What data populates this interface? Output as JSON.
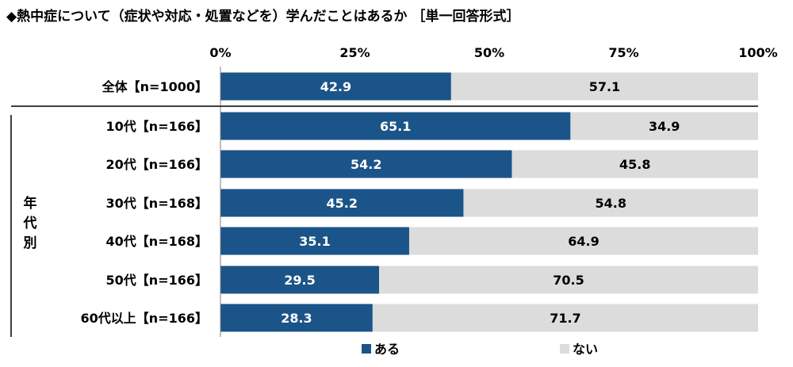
{
  "chart_data": {
    "type": "bar",
    "orientation": "horizontal",
    "stacked": "100%",
    "title": "◆熱中症について（症状や対応・処置などを）学んだことはあるか ［単一回答形式］",
    "xlim": [
      0,
      100
    ],
    "x_ticks": [
      "0%",
      "25%",
      "50%",
      "75%",
      "100%"
    ],
    "categories": [
      "全体【n=1000】",
      "10代【n=166】",
      "20代【n=166】",
      "30代【n=168】",
      "40代【n=168】",
      "50代【n=166】",
      "60代以上【n=166】"
    ],
    "group_label": "年代別",
    "series": [
      {
        "name": "ある",
        "color": "#1b5488",
        "values": [
          42.9,
          65.1,
          54.2,
          45.2,
          35.1,
          29.5,
          28.3
        ]
      },
      {
        "name": "ない",
        "color": "#dcdcdc",
        "values": [
          57.1,
          34.9,
          45.8,
          54.8,
          64.9,
          70.5,
          71.7
        ]
      }
    ],
    "legend_position": "bottom",
    "grid": false
  }
}
